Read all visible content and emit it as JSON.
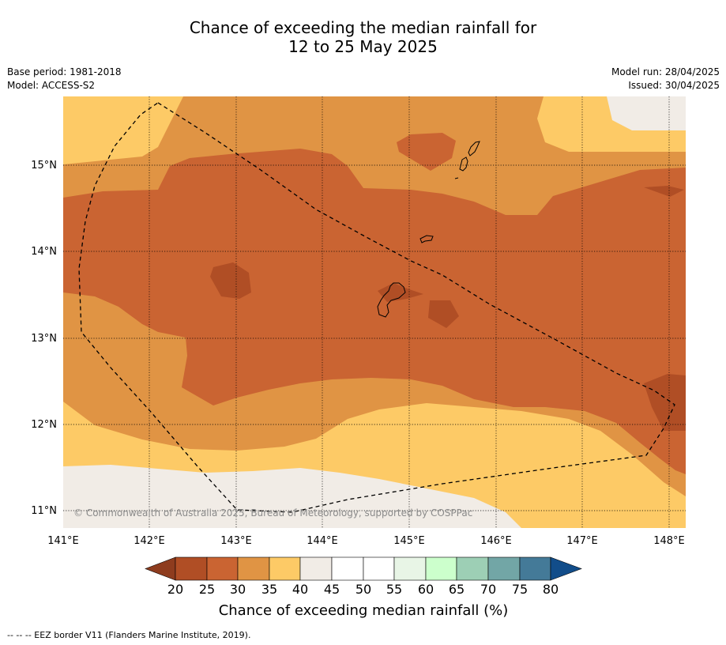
{
  "title": {
    "line1": "Chance of exceeding the median rainfall for",
    "line2": "12 to 25 May 2025"
  },
  "meta": {
    "base_period": "Base period: 1981-2018",
    "model": "Model: ACCESS-S2",
    "model_run": "Model run: 28/04/2025",
    "issued": "Issued: 30/04/2025"
  },
  "map": {
    "region": "Guam / Northern Mariana Islands",
    "lon_range": [
      141,
      148.2
    ],
    "lat_range": [
      10.8,
      15.8
    ],
    "lon_ticks": [
      "141°E",
      "142°E",
      "143°E",
      "144°E",
      "145°E",
      "146°E",
      "147°E",
      "148°E"
    ],
    "lat_ticks": [
      "15°N",
      "14°N",
      "13°N",
      "12°N",
      "11°N"
    ],
    "copyright": "© Commonwealth of Australia 2025, Bureau of Meteorology, supported by COSPPac"
  },
  "colorbar": {
    "title": "Chance of exceeding median rainfall (%)",
    "ticks": [
      "20",
      "25",
      "30",
      "35",
      "40",
      "45",
      "50",
      "55",
      "60",
      "65",
      "70",
      "75",
      "80"
    ],
    "colors": {
      "below_20": "#8e3c1e",
      "20_25": "#b04e25",
      "25_30": "#ca6432",
      "30_35": "#e09444",
      "35_40": "#fdca66",
      "40_45": "#f1ece6",
      "45_50": "#ffffff",
      "50_55": "#ffffff",
      "55_60": "#e8f5e6",
      "60_65": "#ccffcc",
      "65_70": "#9dcfb5",
      "70_75": "#72a6a6",
      "75_80": "#447a98",
      "above_80": "#124d8a"
    }
  },
  "footnote": "--  --  -- EEZ border V11 (Flanders Marine Institute, 2019)."
}
